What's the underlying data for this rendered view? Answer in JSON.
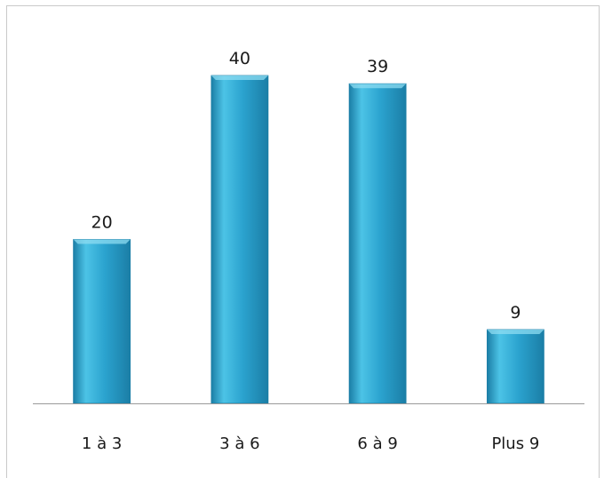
{
  "chart_data": {
    "type": "bar",
    "categories": [
      "1 à 3",
      "3 à 6",
      "6 à 9",
      "Plus 9"
    ],
    "values": [
      20,
      40,
      39,
      9
    ],
    "title": "",
    "xlabel": "",
    "ylabel": "",
    "ylim": [
      0,
      40
    ],
    "grid": false,
    "bar_color": "#2ba3cf",
    "bar_color_light": "#4cc3e6",
    "bar_color_dark": "#1b7ea6",
    "axis_color": "#9a9a9a"
  }
}
